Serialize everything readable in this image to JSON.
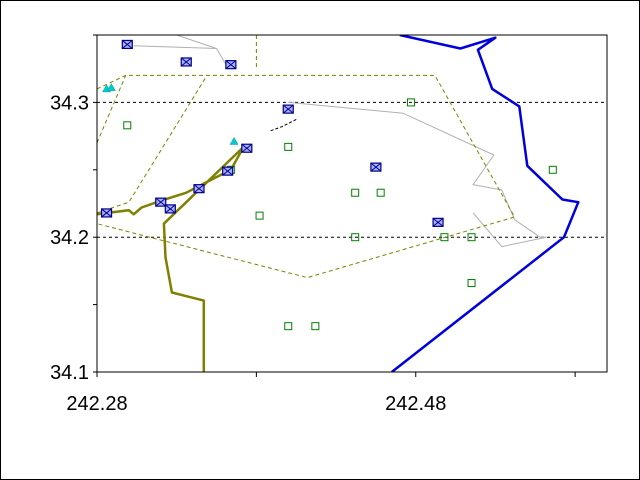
{
  "chart_data": {
    "type": "map",
    "x_axis": {
      "range": [
        242.28,
        242.6
      ],
      "tick_labels": [
        "242.28",
        "242.48"
      ],
      "tick_values": [
        242.28,
        242.48
      ],
      "minor_ticks": [
        242.28,
        242.38,
        242.48,
        242.58
      ]
    },
    "y_axis": {
      "range": [
        34.1,
        34.35
      ],
      "tick_labels": [
        "34.3",
        "34.2",
        "34.1"
      ],
      "tick_values": [
        34.3,
        34.2,
        34.1
      ],
      "minor_ticks": [
        34.1,
        34.15,
        34.2,
        34.25,
        34.3,
        34.35
      ]
    },
    "grid": {
      "horizontal_dashed": [
        34.3,
        34.2
      ]
    },
    "colors": {
      "coast": "#0000dd",
      "road": "#808000",
      "boundary_dashed": "#808000",
      "light_lines": "#b0b0b0",
      "station_box": "#000088",
      "station_box_fill": "#aab0ff",
      "green_square": "#008000",
      "triangle": "#00cccc"
    },
    "stations_x_boxes": [
      [
        242.299,
        34.343
      ],
      [
        242.336,
        34.33
      ],
      [
        242.364,
        34.328
      ],
      [
        242.4,
        34.295
      ],
      [
        242.374,
        34.266
      ],
      [
        242.362,
        34.249
      ],
      [
        242.32,
        34.226
      ],
      [
        242.326,
        34.221
      ],
      [
        242.344,
        34.236
      ],
      [
        242.286,
        34.218
      ],
      [
        242.455,
        34.252
      ],
      [
        242.494,
        34.211
      ]
    ],
    "green_squares": [
      [
        242.299,
        34.283
      ],
      [
        242.477,
        34.3
      ],
      [
        242.4,
        34.267
      ],
      [
        242.364,
        34.25
      ],
      [
        242.442,
        34.233
      ],
      [
        242.458,
        34.233
      ],
      [
        242.382,
        34.216
      ],
      [
        242.442,
        34.2
      ],
      [
        242.498,
        34.2
      ],
      [
        242.515,
        34.2
      ],
      [
        242.566,
        34.25
      ],
      [
        242.515,
        34.166
      ],
      [
        242.4,
        34.134
      ],
      [
        242.417,
        34.134
      ]
    ],
    "triangles": [
      [
        242.286,
        34.31
      ],
      [
        242.289,
        34.311
      ],
      [
        242.366,
        34.271
      ]
    ],
    "coastline": [
      [
        242.47,
        34.35
      ],
      [
        242.508,
        34.34
      ],
      [
        242.53,
        34.348
      ],
      [
        242.519,
        34.339
      ],
      [
        242.528,
        34.31
      ],
      [
        242.545,
        34.297
      ],
      [
        242.55,
        34.253
      ],
      [
        242.572,
        34.228
      ],
      [
        242.582,
        34.226
      ],
      [
        242.573,
        34.2
      ],
      [
        242.465,
        34.1
      ]
    ],
    "road": [
      [
        242.28,
        34.217
      ],
      [
        242.3,
        34.22
      ],
      [
        242.303,
        34.217
      ],
      [
        242.308,
        34.222
      ],
      [
        242.32,
        34.227
      ],
      [
        242.336,
        34.233
      ],
      [
        242.344,
        34.238
      ],
      [
        242.364,
        34.25
      ],
      [
        242.372,
        34.267
      ],
      [
        242.322,
        34.21
      ],
      [
        242.323,
        34.185
      ],
      [
        242.327,
        34.159
      ],
      [
        242.347,
        34.153
      ],
      [
        242.347,
        34.1
      ]
    ],
    "boundary_dashed_lines": [
      [
        [
          242.28,
          34.31
        ],
        [
          242.298,
          34.32
        ],
        [
          242.492,
          34.32
        ],
        [
          242.542,
          34.215
        ],
        [
          242.412,
          34.17
        ],
        [
          242.28,
          34.21
        ]
      ],
      [
        [
          242.28,
          34.27
        ],
        [
          242.298,
          34.32
        ]
      ],
      [
        [
          242.28,
          34.218
        ],
        [
          242.3,
          34.226
        ],
        [
          242.349,
          34.32
        ]
      ],
      [
        [
          242.38,
          34.35
        ],
        [
          242.38,
          34.325
        ]
      ]
    ],
    "light_lines": [
      [
        [
          242.303,
          34.342
        ],
        [
          242.355,
          34.34
        ],
        [
          242.361,
          34.328
        ]
      ],
      [
        [
          242.33,
          34.35
        ],
        [
          242.355,
          34.34
        ]
      ],
      [
        [
          242.4,
          34.3
        ],
        [
          242.472,
          34.292
        ],
        [
          242.529,
          34.261
        ],
        [
          242.516,
          34.239
        ],
        [
          242.534,
          34.235
        ],
        [
          242.542,
          34.213
        ],
        [
          242.558,
          34.2
        ],
        [
          242.562,
          34.2
        ]
      ],
      [
        [
          242.516,
          34.218
        ],
        [
          242.534,
          34.193
        ],
        [
          242.562,
          34.2
        ]
      ]
    ],
    "black_dashed_line": [
      [
        242.389,
        34.279
      ],
      [
        242.396,
        34.282
      ],
      [
        242.406,
        34.288
      ]
    ]
  }
}
